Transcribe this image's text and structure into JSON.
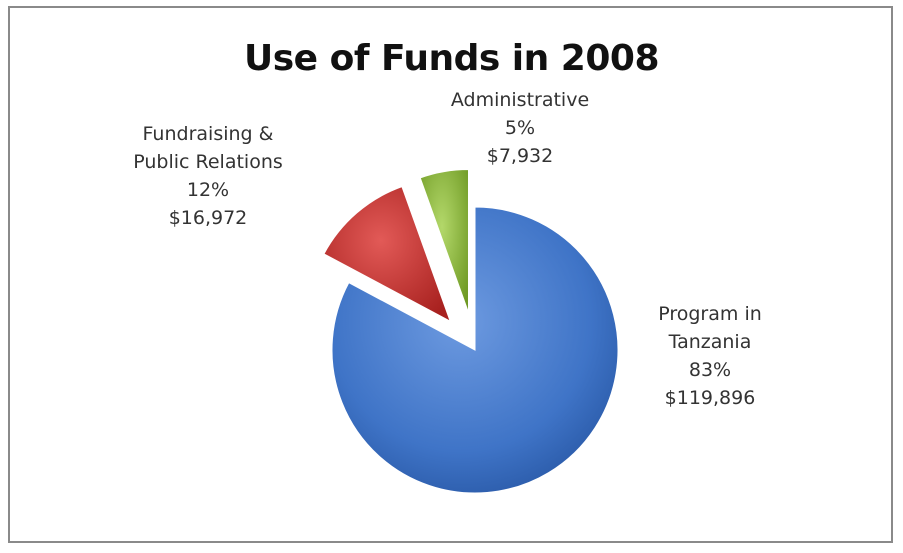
{
  "chart_data": {
    "type": "pie",
    "title": "Use of Funds in 2008",
    "slices": [
      {
        "label_lines": [
          "Program in",
          "Tanzania"
        ],
        "percent_label": "83%",
        "amount_label": "$119,896",
        "value": 119896,
        "percent": 83,
        "color": "#3f74c7",
        "exploded": false
      },
      {
        "label_lines": [
          "Fundraising &",
          "Public Relations"
        ],
        "percent_label": "12%",
        "amount_label": "$16,972",
        "value": 16972,
        "percent": 12,
        "color": "#c8302e",
        "exploded": true
      },
      {
        "label_lines": [
          "Administrative"
        ],
        "percent_label": "5%",
        "amount_label": "$7,932",
        "value": 7932,
        "percent": 5,
        "color": "#8fbe3a",
        "exploded": true
      }
    ],
    "start_angle_deg": 0,
    "direction": "clockwise"
  }
}
